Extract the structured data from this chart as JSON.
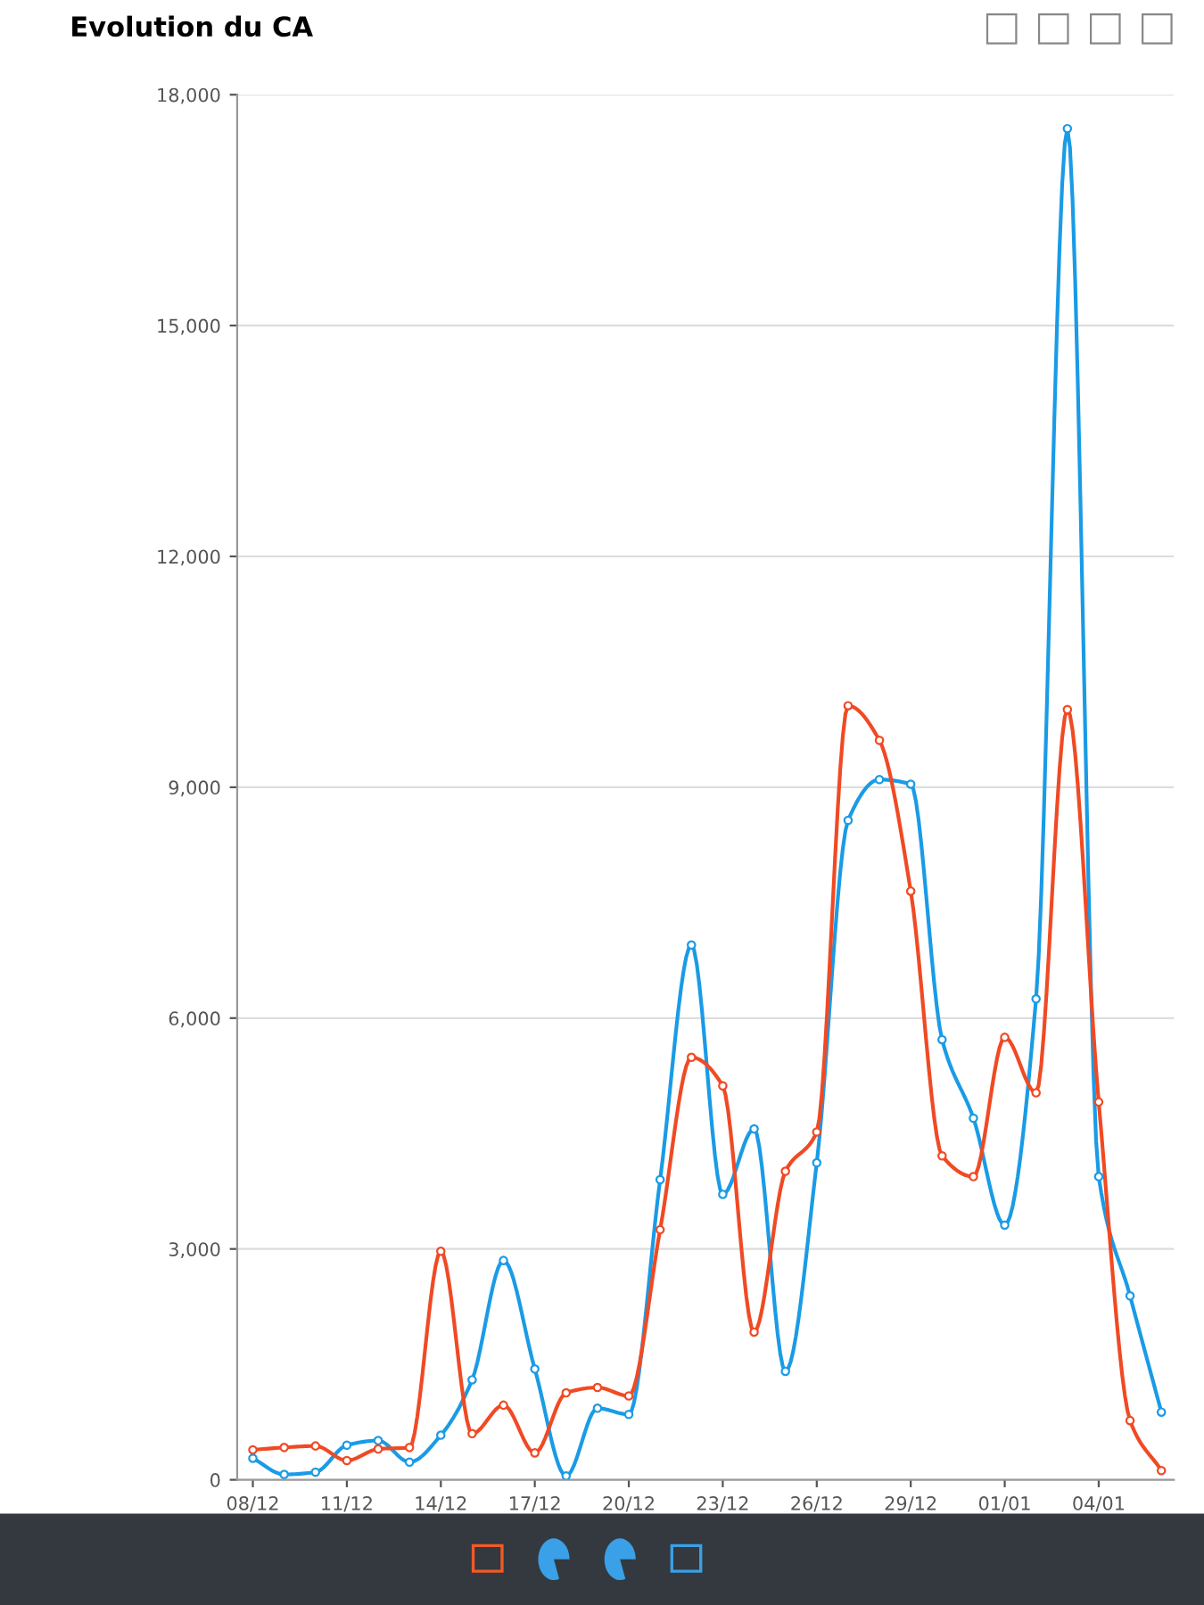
{
  "chart_data": {
    "type": "line",
    "title": "Evolution du CA",
    "categories": [
      "08/12",
      null,
      null,
      "11/12",
      null,
      null,
      "14/12",
      null,
      null,
      "17/12",
      null,
      null,
      "20/12",
      null,
      null,
      "23/12",
      null,
      null,
      "26/12",
      null,
      null,
      "29/12",
      null,
      null,
      "01/01",
      null,
      null,
      "04/01",
      null,
      null
    ],
    "series": [
      {
        "color": "#1a9be6",
        "values": [
          280,
          70,
          100,
          450,
          510,
          230,
          580,
          1300,
          2850,
          1440,
          50,
          930,
          850,
          3900,
          6950,
          3710,
          4560,
          1410,
          4120,
          8570,
          9100,
          9040,
          5720,
          4700,
          3310,
          6250,
          17560,
          3940,
          2390,
          880
        ]
      },
      {
        "color": "#f04a24",
        "values": [
          390,
          420,
          440,
          250,
          400,
          420,
          2970,
          600,
          970,
          350,
          1130,
          1200,
          1090,
          3250,
          5490,
          5120,
          1920,
          4010,
          4520,
          10060,
          9610,
          7650,
          4210,
          3940,
          5750,
          5030,
          10010,
          4910,
          770,
          120
        ]
      }
    ],
    "ylim": [
      0,
      18000
    ],
    "yticks": [
      {
        "value": 0,
        "label": "0"
      },
      {
        "value": 3000,
        "label": "3,000"
      },
      {
        "value": 6000,
        "label": "6,000"
      },
      {
        "value": 9000,
        "label": "9,000"
      },
      {
        "value": 12000,
        "label": "12,000"
      },
      {
        "value": 15000,
        "label": "15,000"
      },
      {
        "value": 18000,
        "label": "18,000"
      }
    ],
    "grid": "y",
    "marker": "circle",
    "line_style": "solid",
    "legend": false
  }
}
